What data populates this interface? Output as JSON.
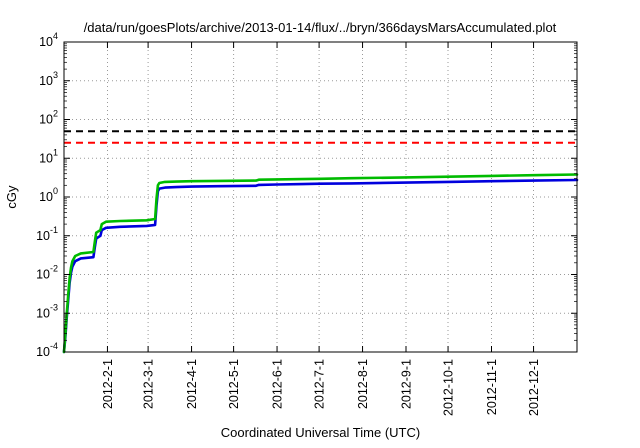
{
  "chart_data": {
    "type": "line",
    "title": "/data/run/goesPlots/archive/2013-01-14/flux/../bryn/366daysMarsAccumulated.plot",
    "xlabel": "Coordinated Universal Time (UTC)",
    "ylabel": "cGy",
    "x_unit": "day of year 2012",
    "xlim": [
      0,
      366
    ],
    "ylog_lim": [
      -4,
      4
    ],
    "grid": true,
    "legend": "none",
    "x_ticks": [
      {
        "day": 31,
        "label": "2012-2-1"
      },
      {
        "day": 60,
        "label": "2012-3-1"
      },
      {
        "day": 91,
        "label": "2012-4-1"
      },
      {
        "day": 121,
        "label": "2012-5-1"
      },
      {
        "day": 152,
        "label": "2012-6-1"
      },
      {
        "day": 182,
        "label": "2012-7-1"
      },
      {
        "day": 213,
        "label": "2012-8-1"
      },
      {
        "day": 244,
        "label": "2012-9-1"
      },
      {
        "day": 274,
        "label": "2012-10-1"
      },
      {
        "day": 305,
        "label": "2012-11-1"
      },
      {
        "day": 335,
        "label": "2012-12-1"
      }
    ],
    "y_tick_exponents": [
      -4,
      -3,
      -2,
      -1,
      0,
      1,
      2,
      3,
      4
    ],
    "reference_lines": [
      {
        "name": "upper-dose-limit",
        "value": 50,
        "color": "#000000",
        "style": "dashed"
      },
      {
        "name": "lower-dose-limit",
        "value": 25,
        "color": "#ff0000",
        "style": "dashed"
      }
    ],
    "series": [
      {
        "name": "accumulated-dose-blue",
        "color": "#0000dd",
        "points": [
          [
            0,
            0.0001
          ],
          [
            1,
            0.00025
          ],
          [
            2,
            0.0008
          ],
          [
            3,
            0.0022
          ],
          [
            4,
            0.006
          ],
          [
            5,
            0.011
          ],
          [
            6,
            0.016
          ],
          [
            8,
            0.022
          ],
          [
            12,
            0.026
          ],
          [
            21,
            0.028
          ],
          [
            22,
            0.05
          ],
          [
            23,
            0.085
          ],
          [
            26,
            0.1
          ],
          [
            27,
            0.14
          ],
          [
            30,
            0.16
          ],
          [
            40,
            0.17
          ],
          [
            59,
            0.18
          ],
          [
            65,
            0.19
          ],
          [
            66,
            0.6
          ],
          [
            67,
            1.4
          ],
          [
            68,
            1.65
          ],
          [
            72,
            1.75
          ],
          [
            80,
            1.8
          ],
          [
            91,
            1.85
          ],
          [
            110,
            1.9
          ],
          [
            137,
            1.95
          ],
          [
            139,
            2.05
          ],
          [
            152,
            2.1
          ],
          [
            170,
            2.15
          ],
          [
            183,
            2.2
          ],
          [
            205,
            2.25
          ],
          [
            244,
            2.35
          ],
          [
            274,
            2.45
          ],
          [
            305,
            2.55
          ],
          [
            335,
            2.65
          ],
          [
            366,
            2.75
          ]
        ]
      },
      {
        "name": "accumulated-dose-green",
        "color": "#00bb00",
        "points": [
          [
            0,
            0.0001
          ],
          [
            1,
            0.0003
          ],
          [
            2,
            0.001
          ],
          [
            3,
            0.003
          ],
          [
            4,
            0.008
          ],
          [
            5,
            0.015
          ],
          [
            6,
            0.022
          ],
          [
            8,
            0.03
          ],
          [
            12,
            0.035
          ],
          [
            21,
            0.038
          ],
          [
            22,
            0.07
          ],
          [
            23,
            0.12
          ],
          [
            26,
            0.14
          ],
          [
            27,
            0.2
          ],
          [
            30,
            0.23
          ],
          [
            40,
            0.24
          ],
          [
            59,
            0.25
          ],
          [
            65,
            0.27
          ],
          [
            66,
            0.9
          ],
          [
            67,
            2.0
          ],
          [
            68,
            2.3
          ],
          [
            72,
            2.45
          ],
          [
            80,
            2.5
          ],
          [
            91,
            2.55
          ],
          [
            110,
            2.6
          ],
          [
            137,
            2.65
          ],
          [
            139,
            2.8
          ],
          [
            152,
            2.85
          ],
          [
            170,
            2.9
          ],
          [
            183,
            2.95
          ],
          [
            205,
            3.05
          ],
          [
            244,
            3.2
          ],
          [
            274,
            3.35
          ],
          [
            305,
            3.5
          ],
          [
            335,
            3.65
          ],
          [
            366,
            3.8
          ]
        ]
      }
    ]
  }
}
